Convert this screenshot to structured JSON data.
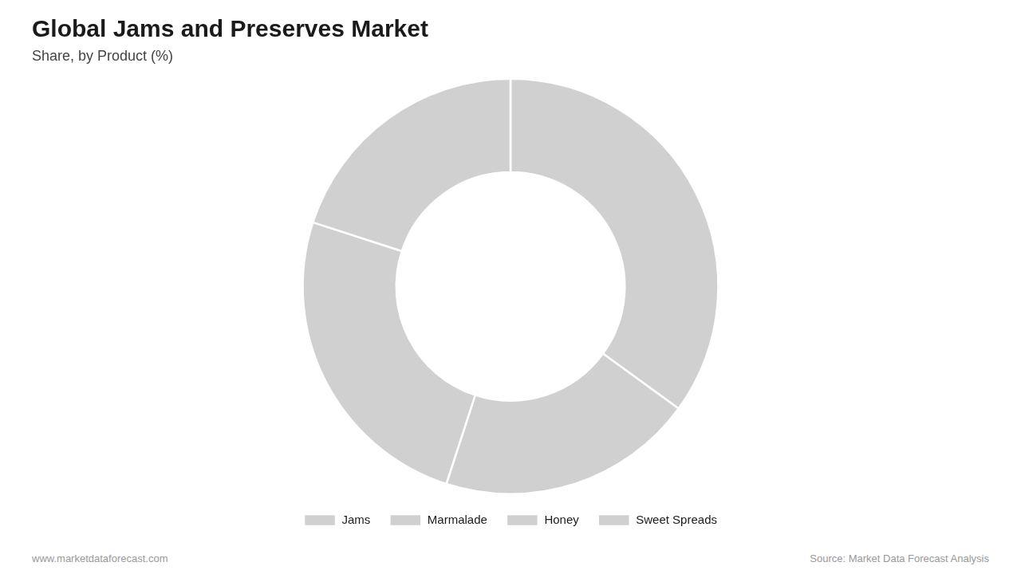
{
  "chart_data": {
    "type": "doughnut",
    "title": "Global Jams and Preserves Market",
    "subtitle": "Share, by Product (%)",
    "categories": [
      "Jams",
      "Marmalade",
      "Honey",
      "Sweet Spreads"
    ],
    "values": [
      35,
      20,
      25,
      20
    ],
    "colors": [
      "#d0d0d0",
      "#d0d0d0",
      "#d0d0d0",
      "#d0d0d0"
    ],
    "legend": "bottom",
    "annotations": [
      "www.marketdataforecast.com",
      "Source: Market Data Forecast Analysis"
    ]
  }
}
